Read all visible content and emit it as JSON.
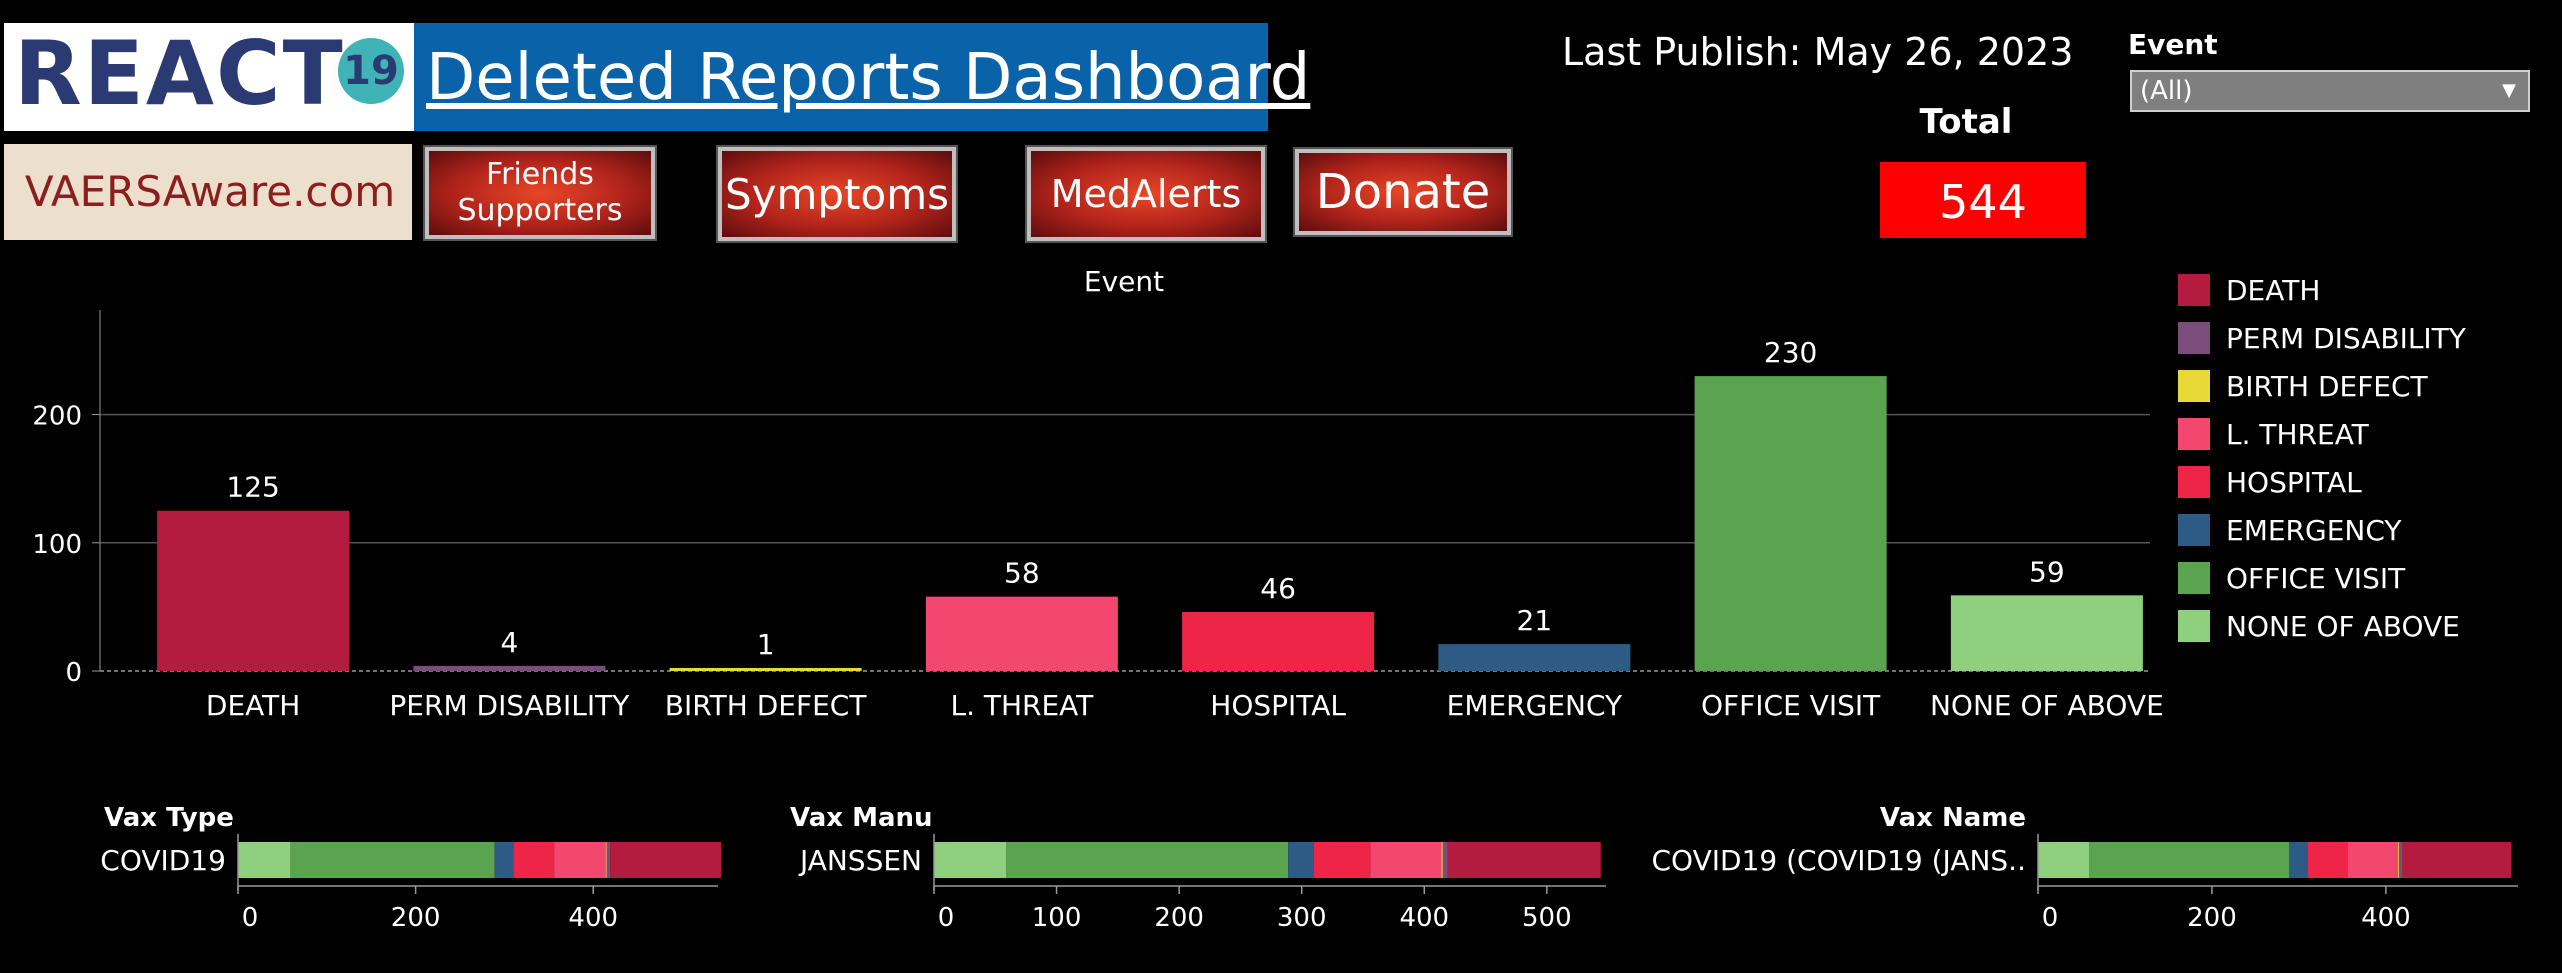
{
  "header": {
    "logo_text": "REACT",
    "logo_badge": "19",
    "title": "Deleted Reports Dashboard",
    "site": "VAERSAware.com",
    "buttons": {
      "friends_line1": "Friends",
      "friends_line2": "Supporters",
      "symptoms": "Symptoms",
      "medalerts": "MedAlerts",
      "donate": "Donate"
    },
    "last_publish": "Last Publish:  May 26, 2023",
    "total_label": "Total",
    "total_value": "544"
  },
  "filter": {
    "label": "Event",
    "selected": "(All)"
  },
  "colors": {
    "DEATH": "#b41c3f",
    "PERM DISABILITY": "#7a4d7c",
    "BIRTH DEFECT": "#e8d838",
    "L. THREAT": "#f4476f",
    "HOSPITAL": "#ef2548",
    "EMERGENCY": "#2e5b86",
    "OFFICE VISIT": "#5aa34f",
    "NONE OF ABOVE": "#8fd07e"
  },
  "chart_data": [
    {
      "type": "bar",
      "title": "Event",
      "categories": [
        "DEATH",
        "PERM DISABILITY",
        "BIRTH DEFECT",
        "L. THREAT",
        "HOSPITAL",
        "EMERGENCY",
        "OFFICE VISIT",
        "NONE OF ABOVE"
      ],
      "values": [
        125,
        4,
        1,
        58,
        46,
        21,
        230,
        59
      ],
      "yticks": [
        0,
        100,
        200
      ],
      "ylim": [
        0,
        280
      ],
      "grid": true,
      "legend": "right"
    },
    {
      "type": "bar",
      "orientation": "horizontal",
      "stacked": true,
      "title": "Vax Type",
      "category": "COVID19",
      "xticks": [
        0,
        200,
        400
      ],
      "xlim": [
        0,
        550
      ]
    },
    {
      "type": "bar",
      "orientation": "horizontal",
      "stacked": true,
      "title": "Vax Manu",
      "category": "JANSSEN",
      "xticks": [
        0,
        100,
        200,
        300,
        400,
        500
      ],
      "xlim": [
        0,
        550
      ]
    },
    {
      "type": "bar",
      "orientation": "horizontal",
      "stacked": true,
      "title": "Vax Name",
      "category": "COVID19 (COVID19 (JANS..",
      "xticks": [
        0,
        200,
        400
      ],
      "xlim": [
        0,
        550
      ]
    }
  ],
  "stack_order": [
    "NONE OF ABOVE",
    "OFFICE VISIT",
    "EMERGENCY",
    "HOSPITAL",
    "L. THREAT",
    "BIRTH DEFECT",
    "PERM DISABILITY",
    "DEATH"
  ]
}
